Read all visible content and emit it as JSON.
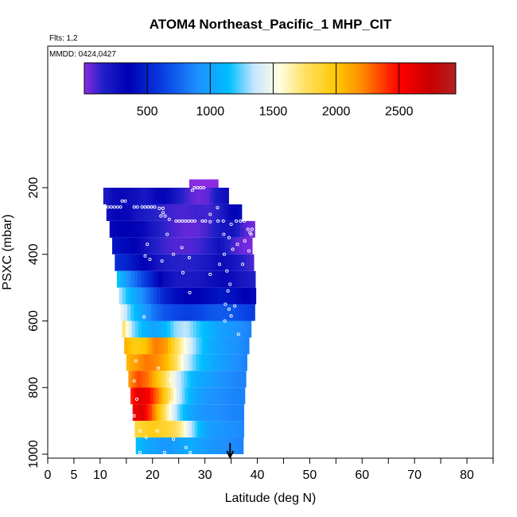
{
  "chart_data": {
    "type": "heatmap",
    "title": "ATOM4 Northeast_Pacific_1 MHP_CIT",
    "subtitle_flights": "Flts: 1,2",
    "subtitle_dates": "MMDD: 0424,0427",
    "xlabel": "Latitude (deg N)",
    "ylabel": "PSXC (mbar)",
    "xlim": [
      0,
      85
    ],
    "ylim": [
      1010,
      0
    ],
    "x_ticks": [
      0,
      5,
      10,
      15,
      20,
      25,
      30,
      35,
      40,
      45,
      50,
      55,
      60,
      65,
      70,
      75,
      80,
      85
    ],
    "x_tick_labels": [
      "0",
      "5",
      "10",
      "20",
      "30",
      "40",
      "50",
      "60",
      "70",
      "80"
    ],
    "x_tick_label_values": [
      0,
      5,
      10,
      20,
      30,
      40,
      50,
      60,
      70,
      80
    ],
    "y_ticks": [
      200,
      400,
      600,
      800,
      1000
    ],
    "y_tick_labels": [
      "200",
      "400",
      "600",
      "800",
      "1000"
    ],
    "colorbar": {
      "range": [
        0,
        2950
      ],
      "ticks": [
        500,
        1000,
        1500,
        2000,
        2500
      ],
      "tick_labels": [
        "500",
        "1000",
        "1500",
        "2000",
        "2500"
      ],
      "stops": [
        [
          0,
          "#8a2be2"
        ],
        [
          150,
          "#2020c8"
        ],
        [
          350,
          "#0000b4"
        ],
        [
          650,
          "#0a46e6"
        ],
        [
          900,
          "#1e90ff"
        ],
        [
          1150,
          "#00bfff"
        ],
        [
          1350,
          "#c8e6ff"
        ],
        [
          1550,
          "#ffffe0"
        ],
        [
          1750,
          "#ffe066"
        ],
        [
          2000,
          "#ffc800"
        ],
        [
          2200,
          "#ff8c00"
        ],
        [
          2500,
          "#ff0000"
        ],
        [
          2750,
          "#c80000"
        ],
        [
          2950,
          "#b22222"
        ]
      ]
    },
    "marker": {
      "x": 34.8,
      "y": 1010,
      "label": ""
    },
    "layers": [
      {
        "p": 200,
        "x0": 27.0,
        "x1": 32.5,
        "v": [
          0,
          0,
          0,
          0,
          0
        ]
      },
      {
        "p": 225,
        "x0": 10.6,
        "x1": 34.5,
        "v": [
          180,
          280,
          300,
          260,
          200,
          300,
          320,
          200,
          100,
          40,
          60,
          200,
          280
        ]
      },
      {
        "p": 275,
        "x0": 11.2,
        "x1": 37.0,
        "v": [
          250,
          320,
          300,
          200,
          150,
          120,
          100,
          90,
          110,
          100,
          150,
          300,
          420
        ]
      },
      {
        "p": 325,
        "x0": 11.8,
        "x1": 39.5,
        "v": [
          300,
          350,
          350,
          300,
          200,
          120,
          80,
          50,
          60,
          120,
          200,
          250,
          80,
          30
        ]
      },
      {
        "p": 375,
        "x0": 12.3,
        "x1": 39.0,
        "v": [
          450,
          400,
          350,
          250,
          150,
          100,
          80,
          80,
          100,
          150,
          250,
          120,
          40,
          20
        ]
      },
      {
        "p": 425,
        "x0": 12.8,
        "x1": 39.3,
        "v": [
          550,
          500,
          400,
          300,
          200,
          150,
          140,
          150,
          200,
          280,
          250,
          150,
          80
        ]
      },
      {
        "p": 475,
        "x0": 13.2,
        "x1": 39.6,
        "v": [
          1200,
          900,
          700,
          500,
          300,
          200,
          180,
          200,
          250,
          300,
          280,
          200,
          150
        ]
      },
      {
        "p": 525,
        "x0": 13.6,
        "x1": 39.7,
        "v": [
          1350,
          1100,
          900,
          700,
          500,
          400,
          350,
          350,
          400,
          450,
          420,
          350,
          300
        ]
      },
      {
        "p": 575,
        "x0": 13.9,
        "x1": 39.5,
        "v": [
          1500,
          1200,
          1000,
          800,
          700,
          650,
          620,
          650,
          700,
          720,
          700,
          650,
          600
        ]
      },
      {
        "p": 625,
        "x0": 14.2,
        "x1": 38.8,
        "v": [
          1800,
          1300,
          1100,
          1000,
          1100,
          1300,
          1350,
          1200,
          1100,
          1000,
          950,
          900,
          850
        ]
      },
      {
        "p": 675,
        "x0": 14.6,
        "x1": 38.4,
        "v": [
          2100,
          1950,
          2000,
          2250,
          2150,
          1800,
          1500,
          1250,
          1100,
          1000,
          950,
          900,
          850
        ]
      },
      {
        "p": 725,
        "x0": 15.0,
        "x1": 38.0,
        "v": [
          2050,
          2150,
          2250,
          2200,
          2050,
          1750,
          1400,
          1200,
          1100,
          1000,
          950,
          900,
          850
        ]
      },
      {
        "p": 775,
        "x0": 15.4,
        "x1": 37.8,
        "v": [
          2150,
          2350,
          2250,
          2000,
          1700,
          1400,
          1200,
          1050,
          1000,
          950,
          900,
          870,
          850
        ]
      },
      {
        "p": 825,
        "x0": 15.8,
        "x1": 37.6,
        "v": [
          2400,
          2650,
          2500,
          2200,
          1800,
          1400,
          1150,
          1000,
          950,
          900,
          880,
          860,
          850
        ]
      },
      {
        "p": 875,
        "x0": 16.2,
        "x1": 37.4,
        "v": [
          2550,
          2650,
          2350,
          1950,
          1550,
          1250,
          1050,
          950,
          920,
          900,
          880,
          860,
          850
        ]
      },
      {
        "p": 925,
        "x0": 16.6,
        "x1": 37.4,
        "v": [
          1850,
          1900,
          1950,
          1900,
          1850,
          1700,
          1400,
          1150,
          1000,
          950,
          920,
          900,
          880
        ]
      },
      {
        "p": 975,
        "x0": 16.8,
        "x1": 37.3,
        "v": [
          1150,
          1050,
          1000,
          950,
          950,
          1000,
          1050,
          1000,
          950,
          920,
          900,
          880,
          860
        ]
      }
    ],
    "points": [
      [
        28.0,
        200
      ],
      [
        28.6,
        200
      ],
      [
        29.2,
        200
      ],
      [
        29.8,
        200
      ],
      [
        27.6,
        208
      ],
      [
        10.9,
        258
      ],
      [
        11.5,
        258
      ],
      [
        12.1,
        258
      ],
      [
        12.7,
        258
      ],
      [
        13.3,
        258
      ],
      [
        13.9,
        258
      ],
      [
        14.2,
        240
      ],
      [
        14.8,
        240
      ],
      [
        16.5,
        258
      ],
      [
        17.1,
        258
      ],
      [
        18.0,
        258
      ],
      [
        18.6,
        258
      ],
      [
        19.2,
        258
      ],
      [
        19.8,
        258
      ],
      [
        20.4,
        258
      ],
      [
        21.3,
        262
      ],
      [
        22.0,
        262
      ],
      [
        22.0,
        275
      ],
      [
        22.4,
        285
      ],
      [
        23.2,
        295
      ],
      [
        24.5,
        300
      ],
      [
        25.1,
        300
      ],
      [
        25.7,
        300
      ],
      [
        26.3,
        300
      ],
      [
        26.9,
        300
      ],
      [
        27.5,
        300
      ],
      [
        28.1,
        300
      ],
      [
        29.5,
        300
      ],
      [
        30.1,
        300
      ],
      [
        31.0,
        302
      ],
      [
        32.5,
        300
      ],
      [
        33.5,
        300
      ],
      [
        36.0,
        300
      ],
      [
        36.8,
        300
      ],
      [
        37.5,
        300
      ],
      [
        31.0,
        280
      ],
      [
        32.4,
        260
      ],
      [
        21.6,
        285
      ],
      [
        22.8,
        340
      ],
      [
        35.0,
        310
      ],
      [
        33.6,
        340
      ],
      [
        34.6,
        350
      ],
      [
        38.2,
        325
      ],
      [
        38.6,
        335
      ],
      [
        39.0,
        325
      ],
      [
        38.8,
        340
      ],
      [
        37.6,
        360
      ],
      [
        36.2,
        370
      ],
      [
        35.3,
        385
      ],
      [
        33.7,
        400
      ],
      [
        38.4,
        390
      ],
      [
        19.0,
        370
      ],
      [
        24.0,
        400
      ],
      [
        25.6,
        380
      ],
      [
        27.0,
        410
      ],
      [
        19.5,
        415
      ],
      [
        18.6,
        405
      ],
      [
        21.8,
        420
      ],
      [
        32.8,
        430
      ],
      [
        37.2,
        430
      ],
      [
        34.2,
        450
      ],
      [
        34.8,
        490
      ],
      [
        25.8,
        455
      ],
      [
        31.0,
        460
      ],
      [
        34.4,
        510
      ],
      [
        27.1,
        515
      ],
      [
        33.9,
        550
      ],
      [
        35.7,
        555
      ],
      [
        34.6,
        565
      ],
      [
        35.0,
        585
      ],
      [
        33.8,
        600
      ],
      [
        18.4,
        588
      ],
      [
        36.4,
        640
      ],
      [
        16.8,
        720
      ],
      [
        21.1,
        742
      ],
      [
        16.5,
        780
      ],
      [
        23.3,
        778
      ],
      [
        17.0,
        835
      ],
      [
        23.5,
        845
      ],
      [
        16.5,
        885
      ],
      [
        17.6,
        930
      ],
      [
        20.9,
        930
      ],
      [
        18.8,
        950
      ],
      [
        24.0,
        955
      ],
      [
        17.6,
        995
      ],
      [
        22.3,
        995
      ],
      [
        26.4,
        980
      ],
      [
        27.2,
        995
      ],
      [
        35.0,
        1000
      ]
    ]
  }
}
